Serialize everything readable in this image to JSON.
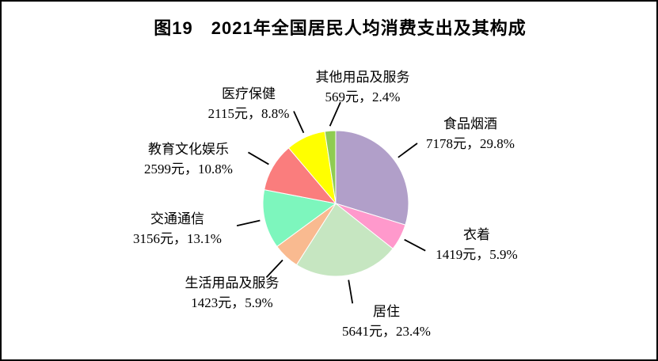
{
  "figure": {
    "title": "图19　2021年全国居民人均消费支出及其构成"
  },
  "chart_data": {
    "type": "pie",
    "title": "图19　2021年全国居民人均消费支出及其构成",
    "unit": "元",
    "start_angle": "top",
    "direction": "clockwise",
    "legend": "none",
    "labels": "outside-with-leader-lines",
    "leader_line_color": "#000000",
    "slice_border_color": "#ffffff",
    "slices": [
      {
        "id": "food-tobacco-alcohol",
        "name": "食品烟酒",
        "value": 7178,
        "pct": 29.8,
        "value_label": "7178元，29.8%",
        "color": "#B19FC9"
      },
      {
        "id": "clothing",
        "name": "衣着",
        "value": 1419,
        "pct": 5.9,
        "value_label": "1419元，5.9%",
        "color": "#FF99CC"
      },
      {
        "id": "housing",
        "name": "居住",
        "value": 5641,
        "pct": 23.4,
        "value_label": "5641元，23.4%",
        "color": "#C6E6C1"
      },
      {
        "id": "household-goods-services",
        "name": "生活用品及服务",
        "value": 1423,
        "pct": 5.9,
        "value_label": "1423元，5.9%",
        "color": "#F9BA90"
      },
      {
        "id": "transport-communication",
        "name": "交通通信",
        "value": 3156,
        "pct": 13.1,
        "value_label": "3156元，13.1%",
        "color": "#7DF6BD"
      },
      {
        "id": "education-culture-entertainment",
        "name": "教育文化娱乐",
        "value": 2599,
        "pct": 10.8,
        "value_label": "2599元，10.8%",
        "color": "#FA7D7D"
      },
      {
        "id": "healthcare",
        "name": "医疗保健",
        "value": 2115,
        "pct": 8.8,
        "value_label": "2115元，8.8%",
        "color": "#FFFF00"
      },
      {
        "id": "other-goods-services",
        "name": "其他用品及服务",
        "value": 569,
        "pct": 2.4,
        "value_label": "569元，2.4%",
        "color": "#8FCC52"
      }
    ]
  }
}
